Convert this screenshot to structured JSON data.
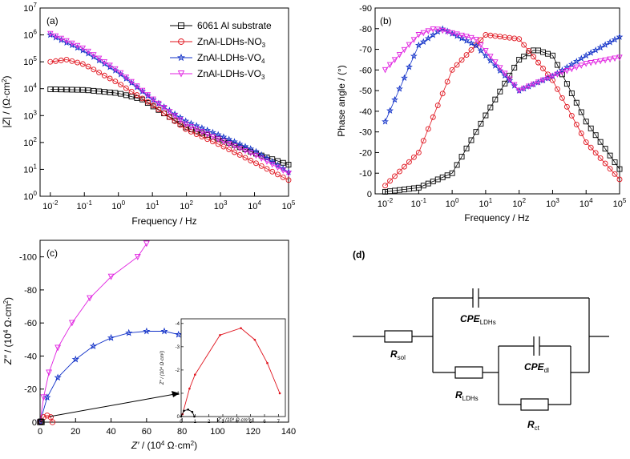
{
  "panels": {
    "a": "(a)",
    "b": "(b)",
    "c": "(c)",
    "d": "(d)"
  },
  "colors": {
    "substrate": "#000000",
    "no3": "#e0141e",
    "vo4": "#1030c8",
    "vo3": "#e020e0"
  },
  "chart_data": [
    {
      "type": "line",
      "panel": "(a)",
      "xlabel": "Frequency / Hz",
      "ylabel": "|Z| / (Ω·cm²)",
      "xscale": "log",
      "yscale": "log",
      "xlim": [
        0.005,
        100000
      ],
      "ylim": [
        1,
        10000000
      ],
      "xticks": [
        "10-2",
        "10-1",
        "100",
        "101",
        "102",
        "103",
        "104",
        "105"
      ],
      "yticks": [
        "100",
        "101",
        "102",
        "103",
        "104",
        "105",
        "106",
        "107"
      ],
      "legend_position": "top-right",
      "series": [
        {
          "name": "6061 Al substrate",
          "marker": "square",
          "color": "#000000",
          "points": [
            [
              0.01,
              9500
            ],
            [
              0.1,
              9000
            ],
            [
              1,
              6800
            ],
            [
              5,
              4000
            ],
            [
              100,
              350
            ],
            [
              1000,
              130
            ],
            [
              10000,
              40
            ],
            [
              100000,
              15
            ]
          ]
        },
        {
          "name": "ZnAl-LDHs-NO3",
          "marker": "circle",
          "color": "#e0141e",
          "points": [
            [
              0.01,
              100000
            ],
            [
              0.03,
              120000
            ],
            [
              0.1,
              80000
            ],
            [
              1,
              16000
            ],
            [
              10,
              2500
            ],
            [
              100,
              300
            ],
            [
              1000,
              80
            ],
            [
              10000,
              18
            ],
            [
              100000,
              4
            ]
          ]
        },
        {
          "name": "ZnAl-LDHs-VO4",
          "marker": "star",
          "color": "#1030c8",
          "points": [
            [
              0.01,
              1000000
            ],
            [
              0.1,
              250000
            ],
            [
              1,
              40000
            ],
            [
              10,
              4000
            ],
            [
              100,
              600
            ],
            [
              1000,
              180
            ],
            [
              10000,
              50
            ],
            [
              100000,
              8
            ]
          ]
        },
        {
          "name": "ZnAl-LDHs-VO3",
          "marker": "triangle-down",
          "color": "#e020e0",
          "points": [
            [
              0.01,
              1100000
            ],
            [
              0.1,
              300000
            ],
            [
              1,
              45000
            ],
            [
              10,
              4200
            ],
            [
              100,
              450
            ],
            [
              1000,
              120
            ],
            [
              10000,
              35
            ],
            [
              100000,
              7
            ]
          ]
        }
      ]
    },
    {
      "type": "line",
      "panel": "(b)",
      "xlabel": "Frequency / Hz",
      "ylabel": "Phase angle / (°)",
      "xscale": "log",
      "xlim": [
        0.005,
        100000
      ],
      "ylim": [
        0,
        -90
      ],
      "xticks": [
        "10-2",
        "10-1",
        "100",
        "101",
        "102",
        "103",
        "104",
        "105"
      ],
      "yticks": [
        "0",
        "-10",
        "-20",
        "-30",
        "-40",
        "-50",
        "-60",
        "-70",
        "-80",
        "-90"
      ],
      "series": [
        {
          "name": "6061 Al substrate",
          "marker": "square",
          "color": "#000000",
          "points": [
            [
              0.01,
              -1
            ],
            [
              0.1,
              -3
            ],
            [
              1,
              -10
            ],
            [
              10,
              -38
            ],
            [
              100,
              -65
            ],
            [
              300,
              -70
            ],
            [
              1000,
              -67
            ],
            [
              10000,
              -35
            ],
            [
              100000,
              -12
            ]
          ]
        },
        {
          "name": "ZnAl-LDHs-NO3",
          "marker": "circle",
          "color": "#e0141e",
          "points": [
            [
              0.01,
              -4
            ],
            [
              0.1,
              -20
            ],
            [
              1,
              -60
            ],
            [
              10,
              -77
            ],
            [
              100,
              -75
            ],
            [
              1000,
              -55
            ],
            [
              10000,
              -25
            ],
            [
              100000,
              -7
            ]
          ]
        },
        {
          "name": "ZnAl-LDHs-VO4",
          "marker": "star",
          "color": "#1030c8",
          "points": [
            [
              0.01,
              -35
            ],
            [
              0.1,
              -72
            ],
            [
              0.5,
              -80
            ],
            [
              5,
              -72
            ],
            [
              100,
              -50
            ],
            [
              1000,
              -57
            ],
            [
              10000,
              -67
            ],
            [
              100000,
              -76
            ]
          ]
        },
        {
          "name": "ZnAl-LDHs-VO3",
          "marker": "triangle-down",
          "color": "#e020e0",
          "points": [
            [
              0.01,
              -60
            ],
            [
              0.1,
              -77
            ],
            [
              0.3,
              -80
            ],
            [
              5,
              -75
            ],
            [
              100,
              -50
            ],
            [
              1000,
              -57
            ],
            [
              10000,
              -63
            ],
            [
              100000,
              -66
            ]
          ]
        }
      ]
    },
    {
      "type": "scatter",
      "panel": "(c)",
      "xlabel": "Z′ / (10⁴ Ω·cm²)",
      "ylabel": "Z″ / (10⁴ Ω·cm²)",
      "xlim": [
        0,
        140
      ],
      "ylim": [
        0,
        -110
      ],
      "xticks": [
        "0",
        "20",
        "40",
        "60",
        "80",
        "100",
        "120",
        "140"
      ],
      "yticks": [
        "0",
        "-20",
        "-40",
        "-60",
        "-80",
        "-100"
      ],
      "series": [
        {
          "name": "ZnAl-LDHs-VO3",
          "marker": "triangle-down",
          "color": "#e020e0",
          "points": [
            [
              0,
              0
            ],
            [
              2,
              -15
            ],
            [
              5,
              -30
            ],
            [
              10,
              -45
            ],
            [
              18,
              -60
            ],
            [
              28,
              -75
            ],
            [
              40,
              -88
            ],
            [
              55,
              -100
            ],
            [
              60,
              -108
            ]
          ]
        },
        {
          "name": "ZnAl-LDHs-VO4",
          "marker": "star",
          "color": "#1030c8",
          "points": [
            [
              0,
              0
            ],
            [
              4,
              -15
            ],
            [
              10,
              -27
            ],
            [
              20,
              -38
            ],
            [
              30,
              -46
            ],
            [
              40,
              -51
            ],
            [
              50,
              -54
            ],
            [
              60,
              -55
            ],
            [
              70,
              -55
            ],
            [
              78,
              -53
            ]
          ]
        },
        {
          "name": "ZnAl-LDHs-NO3",
          "marker": "circle",
          "color": "#e0141e",
          "points": [
            [
              0,
              0
            ],
            [
              2,
              -3
            ],
            [
              4,
              -4
            ],
            [
              6,
              -3
            ],
            [
              7,
              0
            ]
          ]
        },
        {
          "name": "6061 Al substrate",
          "marker": "square",
          "color": "#000000",
          "points": [
            [
              0,
              0
            ],
            [
              0.5,
              -0.4
            ],
            [
              0.9,
              0
            ]
          ]
        }
      ],
      "inset": {
        "xlabel": "Z′ / (10⁴ Ω·cm²)",
        "ylabel": "Z″ / (10⁴ Ω·cm²)",
        "xlim": [
          0,
          7.5
        ],
        "ylim": [
          0,
          -4.2
        ],
        "xticks": [
          "0",
          "1",
          "2",
          "3",
          "4",
          "5",
          "6",
          "7"
        ],
        "yticks": [
          "0",
          "-1",
          "-2",
          "-3",
          "-4"
        ],
        "series": [
          {
            "name": "ZnAl-LDHs-NO3",
            "color": "#e0141e",
            "points": [
              [
                0.1,
                -0.1
              ],
              [
                0.6,
                -1.2
              ],
              [
                1.0,
                -1.8
              ],
              [
                2.8,
                -3.5
              ],
              [
                4.3,
                -3.8
              ],
              [
                5.3,
                -3.3
              ],
              [
                6.2,
                -2.3
              ],
              [
                7.1,
                -1.0
              ]
            ]
          },
          {
            "name": "6061 Al substrate",
            "color": "#000000",
            "points": [
              [
                0,
                0
              ],
              [
                0.2,
                -0.25
              ],
              [
                0.5,
                -0.3
              ],
              [
                0.8,
                -0.2
              ],
              [
                0.95,
                0
              ]
            ]
          }
        ]
      }
    }
  ],
  "circuit": {
    "rsol": "R",
    "rsol_sub": "sol",
    "cpe_ldhs": "CPE",
    "cpe_ldhs_sub": "LDHs",
    "rldhs": "R",
    "rldhs_sub": "LDHs",
    "cpe_dl": "CPE",
    "cpe_dl_sub": "dl",
    "rct": "R",
    "rct_sub": "ct"
  }
}
